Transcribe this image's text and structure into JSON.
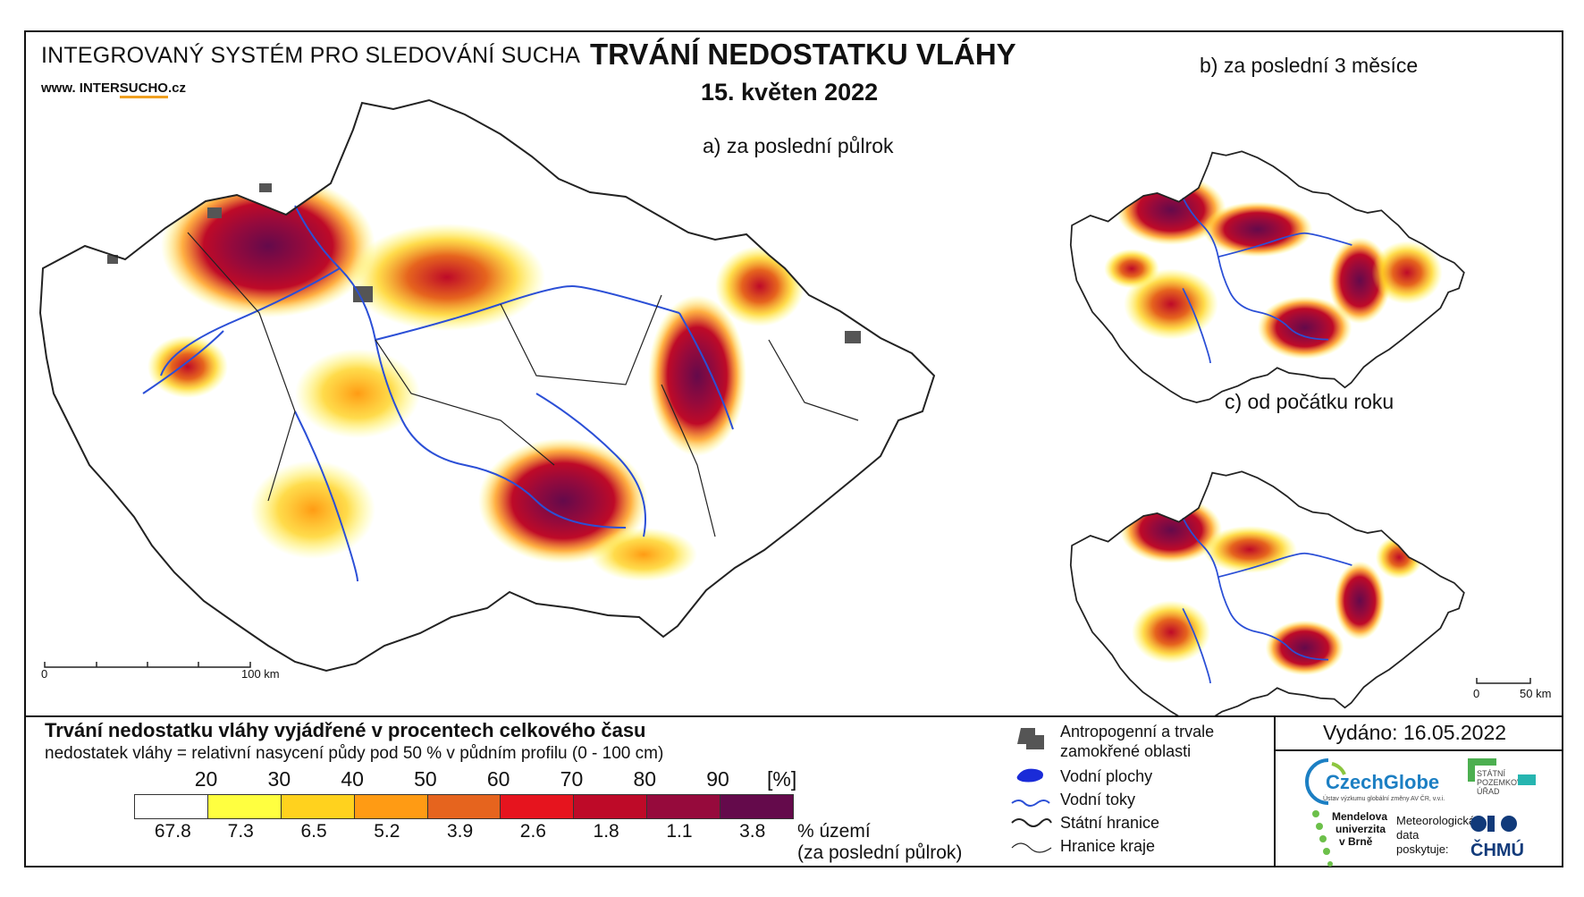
{
  "header": {
    "system_title": "INTEGROVANÝ SYSTÉM PRO SLEDOVÁNÍ SUCHA",
    "website_prefix": "www. INTER",
    "website_highlight": "SUCHO",
    "website_suffix": ".cz",
    "main_title": "TRVÁNÍ NEDOSTATKU VLÁHY",
    "date": "15. květen 2022"
  },
  "maps": {
    "a_title": "a) za poslední půlrok",
    "b_title": "b) za poslední 3 měsíce",
    "c_title": "c) od počátku roku",
    "scale_a": {
      "start": "0",
      "end": "100 km"
    },
    "scale_c": {
      "start": "0",
      "end": "50 km"
    }
  },
  "legend": {
    "title": "Trvání nedostatku vláhy vyjádřené v procentech celkového času",
    "subtitle": "nedostatek vláhy = relativní nasycení půdy pod 50 % v půdním profilu (0 - 100 cm)",
    "unit": "[%]",
    "thresholds": [
      "20",
      "30",
      "40",
      "50",
      "60",
      "70",
      "80",
      "90"
    ],
    "class_colors": [
      "#ffffff",
      "#ffff40",
      "#ffd21e",
      "#ff9b14",
      "#e6641e",
      "#e6141e",
      "#be0a28",
      "#960a3c",
      "#640a4b"
    ],
    "area_percent": [
      "67.8",
      "7.3",
      "6.5",
      "5.2",
      "3.9",
      "2.6",
      "1.8",
      "1.1",
      "3.8"
    ],
    "area_label_1": "% území",
    "area_label_2": "(za poslední půlrok)",
    "symbols": [
      {
        "icon": "urban-area-icon",
        "label_1": "Antropogenní a trvale",
        "label_2": "zamokřené oblasti"
      },
      {
        "icon": "water-body-icon",
        "label": "Vodní plochy"
      },
      {
        "icon": "river-icon",
        "label": "Vodní toky"
      },
      {
        "icon": "state-border-icon",
        "label": "Státní hranice"
      },
      {
        "icon": "region-border-icon",
        "label": "Hranice kraje"
      }
    ]
  },
  "footer": {
    "issued": "Vydáno: 16.05.2022",
    "czechglobe": "CzechGlobe",
    "czechglobe_sub": "Ústav výzkumu globální změny AV ČR, v.v.i.",
    "spu_1": "STÁTNÍ",
    "spu_2": "POZEMKOVÝ",
    "spu_3": "ÚŘAD",
    "mendel_1": "Mendelova",
    "mendel_2": "univerzita",
    "mendel_3": "v Brně",
    "meteo_1": "Meteorologická",
    "meteo_2": "data",
    "meteo_3": "poskytuje:",
    "chmu": "ČHMÚ"
  },
  "colors": {
    "river": "#2b4fd6",
    "urban": "#555555",
    "border": "#222222"
  }
}
